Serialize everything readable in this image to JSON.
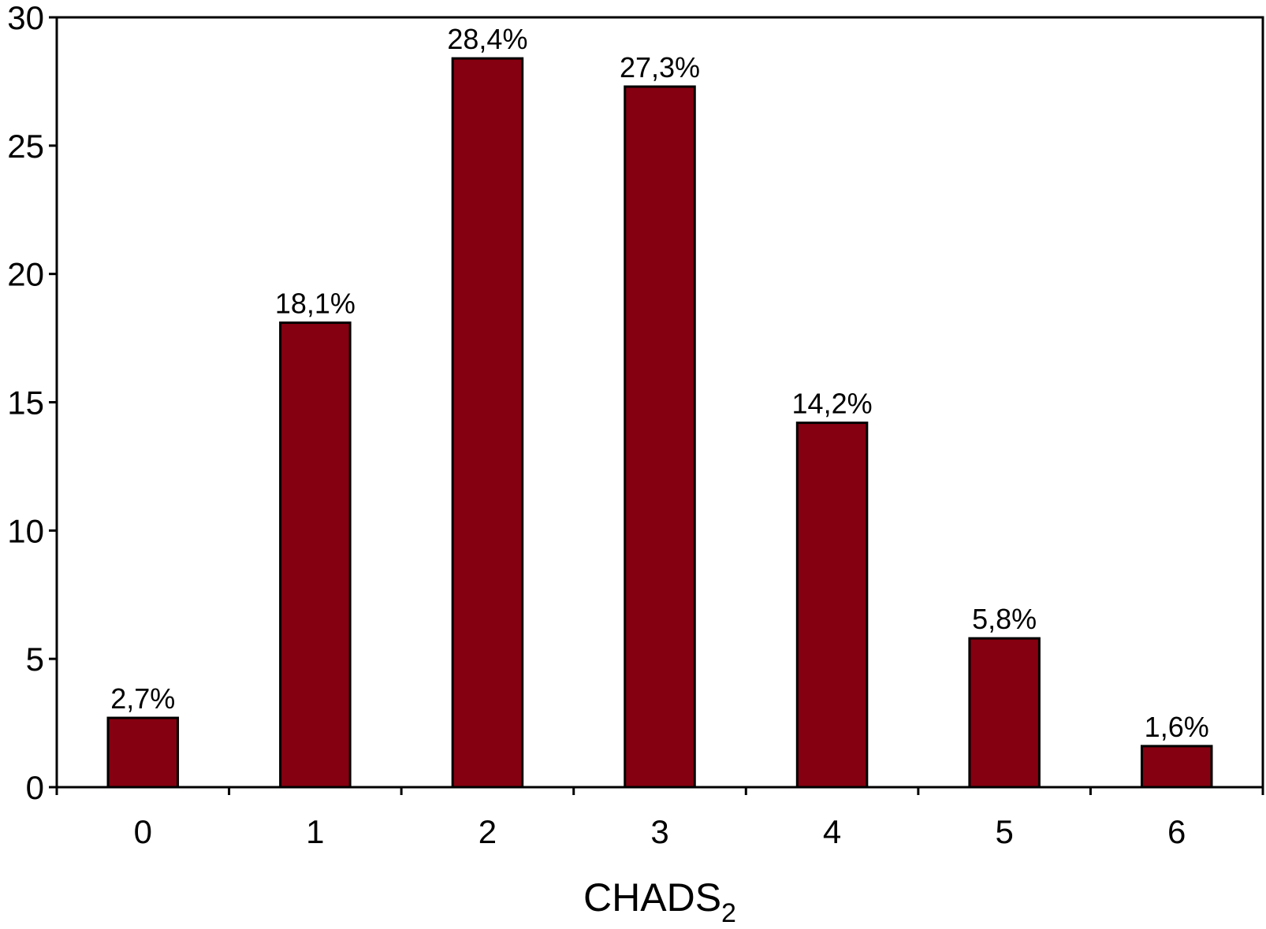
{
  "chart_data": {
    "type": "bar",
    "categories": [
      "0",
      "1",
      "2",
      "3",
      "4",
      "5",
      "6"
    ],
    "values": [
      2.7,
      18.1,
      28.4,
      27.3,
      14.2,
      5.8,
      1.6
    ],
    "value_labels": [
      "2,7%",
      "18,1%",
      "28,4%",
      "27,3%",
      "14,2%",
      "5,8%",
      "1,6%"
    ],
    "title": "",
    "xlabel": "CHADS",
    "xlabel_subscript": "2",
    "ylabel": "",
    "ylim": [
      0,
      30
    ],
    "yticks": [
      0,
      5,
      10,
      15,
      20,
      25,
      30
    ],
    "grid": false,
    "legend": "none",
    "bar_color": "#850010",
    "bar_edge_color": "#000000"
  }
}
